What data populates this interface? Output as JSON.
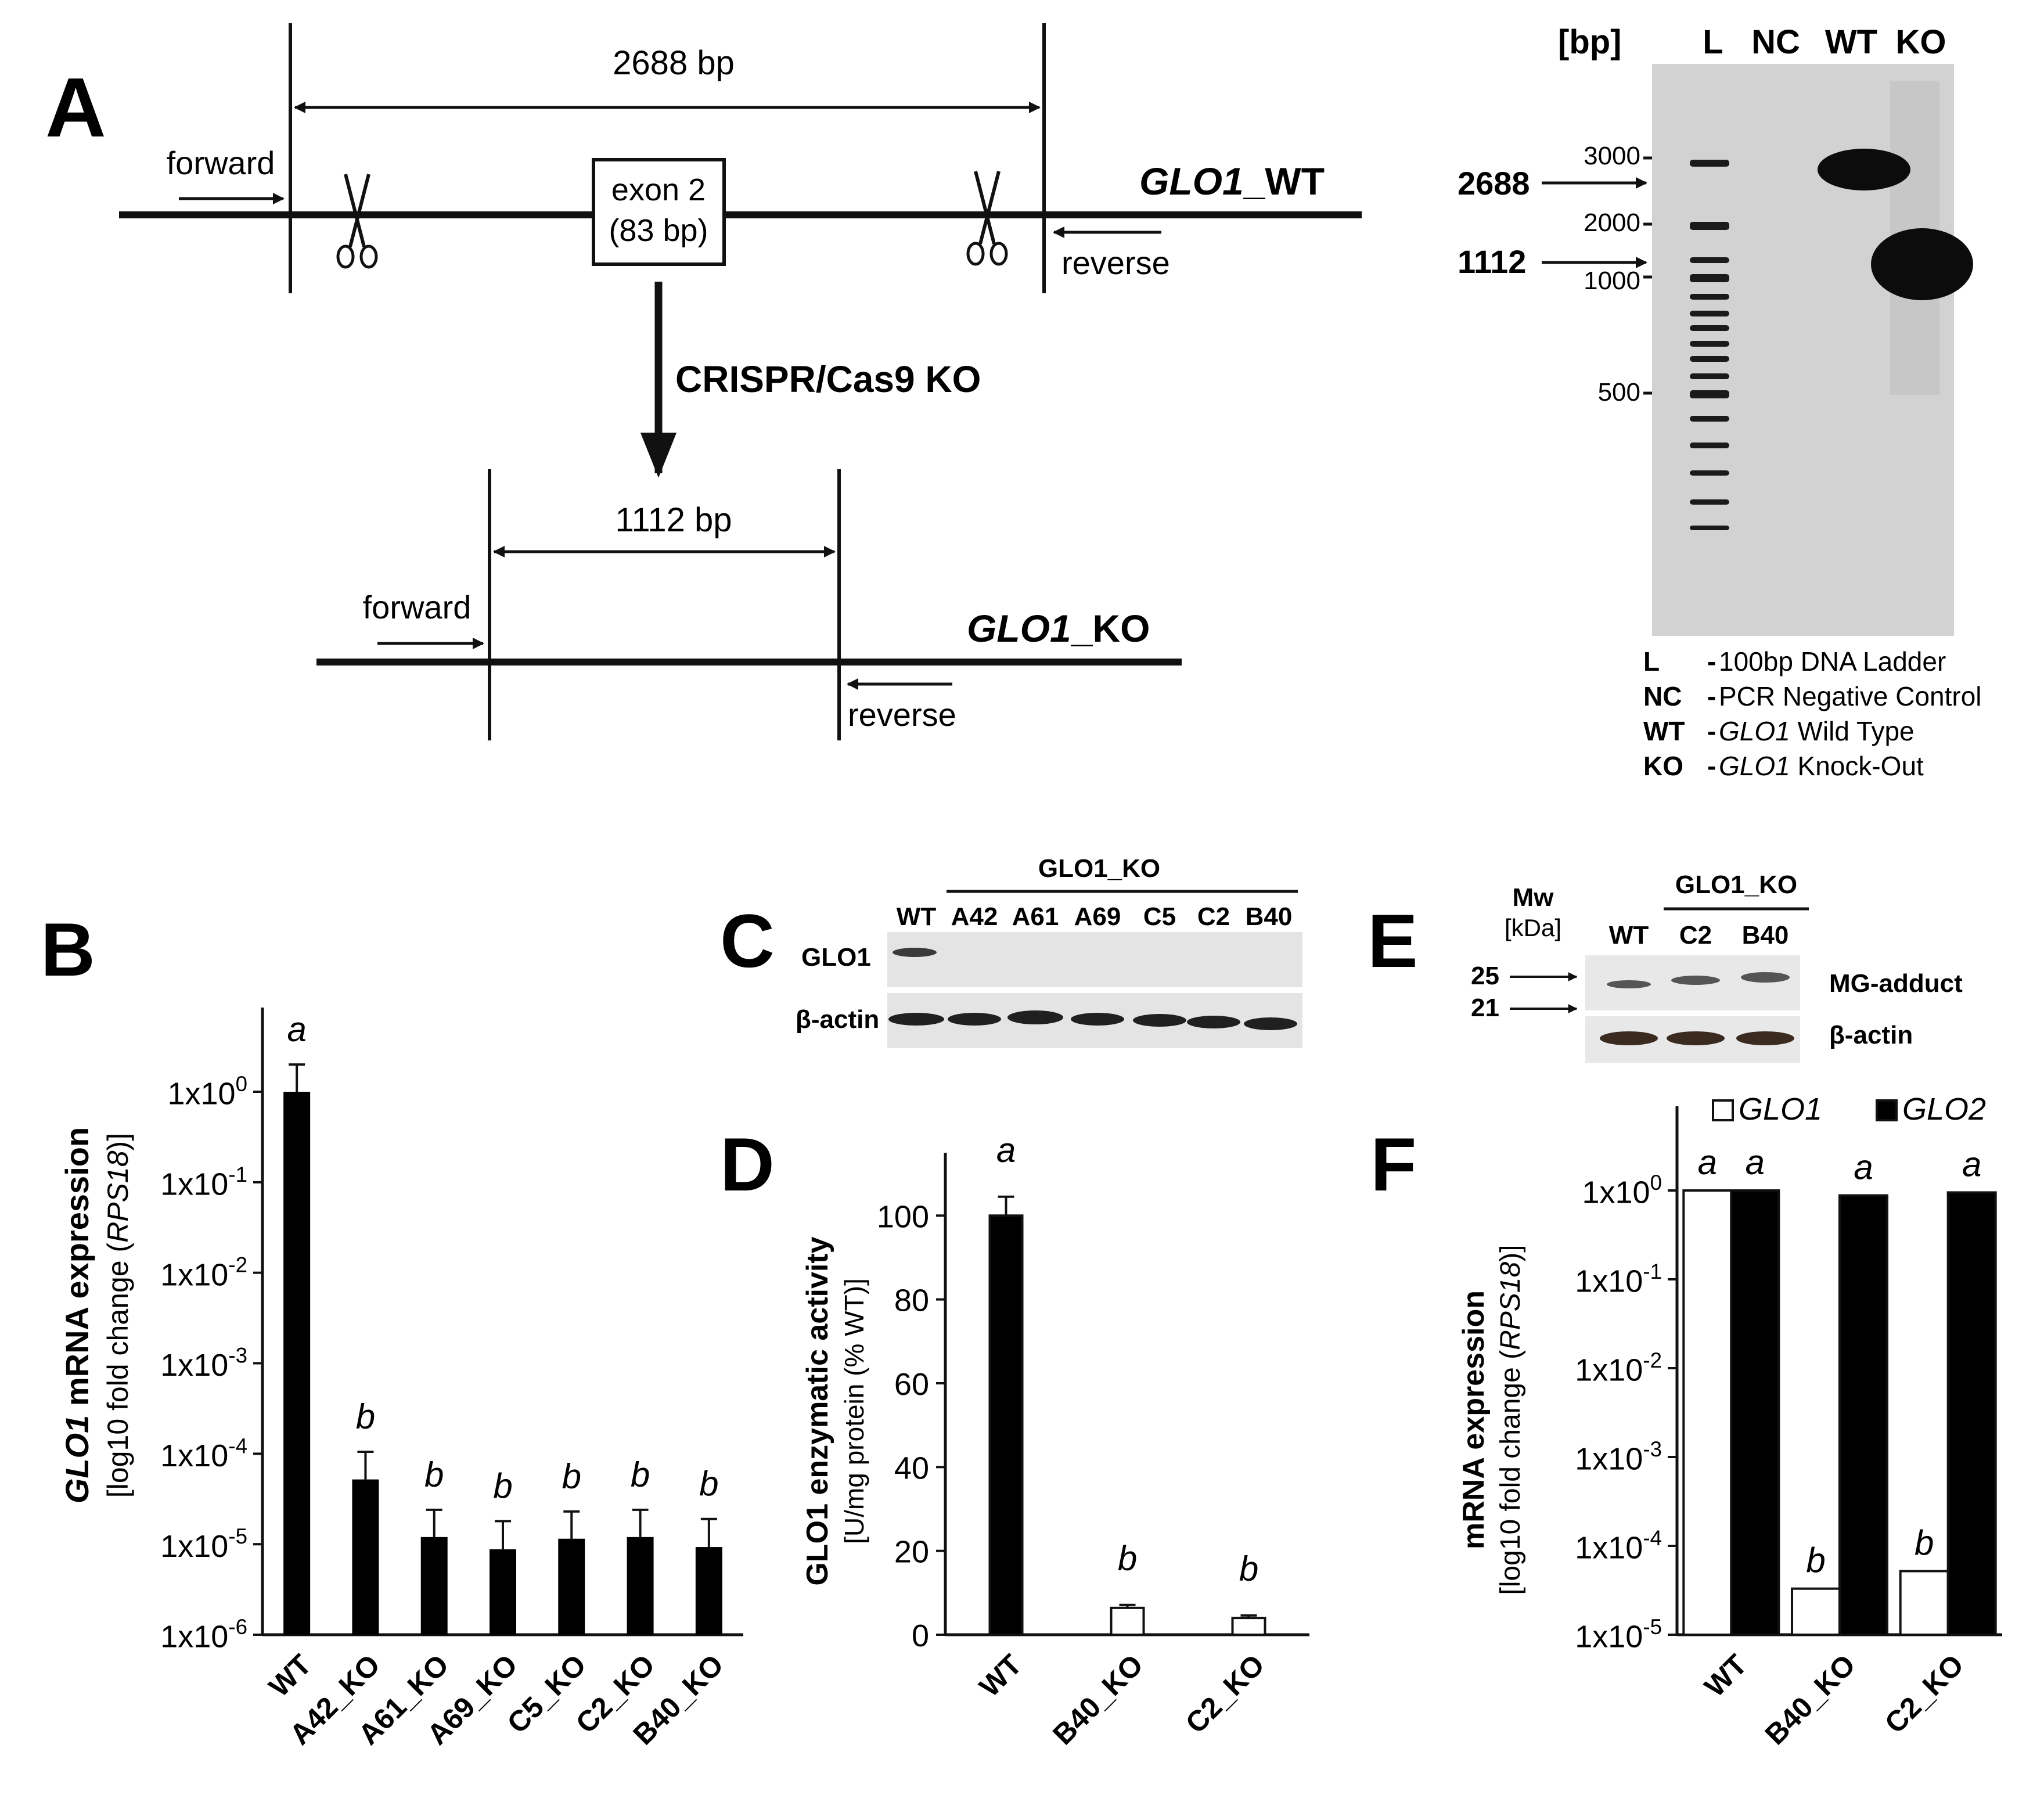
{
  "panels": {
    "a": "A",
    "b": "B",
    "c": "C",
    "d": "D",
    "e": "E",
    "f": "F"
  },
  "panel_a": {
    "wt_length": "2688 bp",
    "ko_length": "1112 bp",
    "forward": "forward",
    "reverse": "reverse",
    "exon_line1": "exon 2",
    "exon_line2": "(83 bp)",
    "crispr": "CRISPR/Cas9 KO",
    "wt_gene": "GLO1",
    "wt_suffix": "_WT",
    "ko_gene": "GLO1",
    "ko_suffix": "_KO"
  },
  "gel": {
    "bp_label": "[bp]",
    "lanes": [
      "L",
      "NC",
      "WT",
      "KO"
    ],
    "ladder_marks": [
      "3000",
      "2000",
      "1000",
      "500"
    ],
    "band_wt": "2688",
    "band_ko": "1112",
    "legend": [
      {
        "key": "L",
        "dash": "-",
        "pre": "100bp DNA Ladder",
        "gene": "",
        "post": ""
      },
      {
        "key": "NC",
        "dash": "-",
        "pre": "PCR Negative Control",
        "gene": "",
        "post": ""
      },
      {
        "key": "WT",
        "dash": "-",
        "pre": "",
        "gene": "GLO1",
        "post": " Wild Type"
      },
      {
        "key": "KO",
        "dash": "-",
        "pre": "",
        "gene": "GLO1",
        "post": " Knock-Out"
      }
    ]
  },
  "blot_c": {
    "group": "GLO1_KO",
    "lanes": [
      "WT",
      "A42",
      "A61",
      "A69",
      "C5",
      "C2",
      "B40"
    ],
    "row1": "GLO1",
    "row2": "β-actin"
  },
  "blot_e": {
    "mw_title": "Mw",
    "mw_unit": "[kDa]",
    "group": "GLO1_KO",
    "lanes": [
      "WT",
      "C2",
      "B40"
    ],
    "mw_25": "25",
    "mw_21": "21",
    "row1": "MG-adduct",
    "row2": "β-actin"
  },
  "chart_data": [
    {
      "panel": "B",
      "type": "bar",
      "yscale": "log",
      "ylim": [
        1e-06,
        1
      ],
      "yticks": [
        {
          "base": "1x10",
          "exp": "0"
        },
        {
          "base": "1x10",
          "exp": "-1"
        },
        {
          "base": "1x10",
          "exp": "-2"
        },
        {
          "base": "1x10",
          "exp": "-3"
        },
        {
          "base": "1x10",
          "exp": "-4"
        },
        {
          "base": "1x10",
          "exp": "-5"
        },
        {
          "base": "1x10",
          "exp": "-6"
        }
      ],
      "ylabel_gene": "GLO1",
      "ylabel_rest": " mRNA expression",
      "ylabel2_pre": "[log10 fold change (",
      "ylabel2_gene": "RPS18",
      "ylabel2_post": ")]",
      "categories": [
        "WT",
        "A42_KO",
        "A61_KO",
        "A69_KO",
        "C5_KO",
        "C2_KO",
        "B40_KO"
      ],
      "values": [
        1.0,
        5.2e-05,
        1.2e-05,
        8.8e-06,
        1.15e-05,
        1.2e-05,
        9.3e-06
      ],
      "errors_upper": [
        2.0,
        0.000105,
        2.4e-05,
        1.8e-05,
        2.3e-05,
        2.4e-05,
        1.9e-05
      ],
      "letters": [
        "a",
        "b",
        "b",
        "b",
        "b",
        "b",
        "b"
      ]
    },
    {
      "panel": "D",
      "type": "bar",
      "ylim": [
        0,
        115
      ],
      "yticks": [
        "0",
        "20",
        "40",
        "60",
        "80",
        "100"
      ],
      "ylabel": "GLO1 enzymatic activity",
      "ylabel2": "[U/mg protein (% WT)]",
      "categories": [
        "WT",
        "B40_KO",
        "C2_KO"
      ],
      "values": [
        100,
        6.4,
        4.0
      ],
      "errors": [
        4.5,
        0.7,
        0.6
      ],
      "fills": [
        "#000000",
        "#ffffff",
        "#ffffff"
      ],
      "letters": [
        "a",
        "b",
        "b"
      ]
    },
    {
      "panel": "F",
      "type": "bar",
      "yscale": "log",
      "ylim": [
        1e-05,
        3
      ],
      "yticks": [
        {
          "base": "1x10",
          "exp": "0"
        },
        {
          "base": "1x10",
          "exp": "-1"
        },
        {
          "base": "1x10",
          "exp": "-2"
        },
        {
          "base": "1x10",
          "exp": "-3"
        },
        {
          "base": "1x10",
          "exp": "-4"
        },
        {
          "base": "1x10",
          "exp": "-5"
        }
      ],
      "ylabel": "mRNA expression",
      "ylabel2_pre": "[log10 fold change (",
      "ylabel2_gene": "RPS18",
      "ylabel2_post": ")]",
      "categories": [
        "WT",
        "B40_KO",
        "C2_KO"
      ],
      "series": [
        {
          "name": "GLO1",
          "fill": "#ffffff",
          "values": [
            1.0,
            3.3e-05,
            5.2e-05
          ],
          "letters": [
            "a",
            "b",
            "b"
          ]
        },
        {
          "name": "GLO2",
          "fill": "#000000",
          "values": [
            1.0,
            0.88,
            0.95
          ],
          "letters": [
            "a",
            "a",
            "a"
          ]
        }
      ]
    }
  ]
}
